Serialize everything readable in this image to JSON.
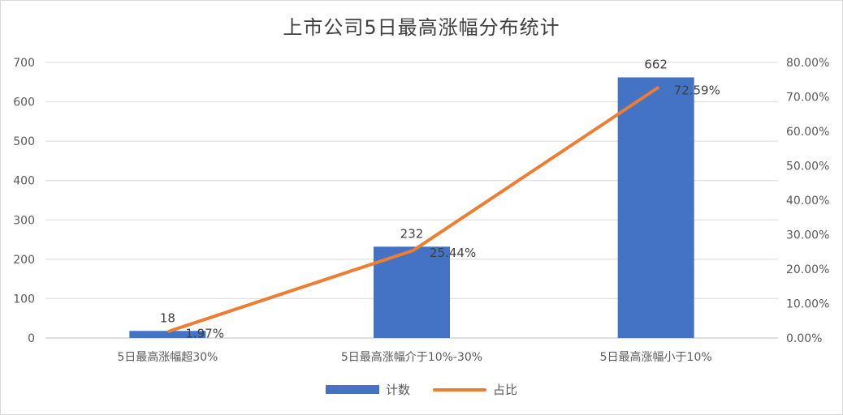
{
  "chart_data": {
    "type": "bar",
    "title": "上市公司5日最高涨幅分布统计",
    "categories": [
      "5日最高涨幅超30%",
      "5日最高涨幅介于10%-30%",
      "5日最高涨幅小于10%"
    ],
    "series": [
      {
        "name": "计数",
        "type": "bar",
        "axis": "left",
        "values": [
          18,
          232,
          662
        ],
        "labels": [
          "18",
          "232",
          "662"
        ],
        "color": "#4472c4"
      },
      {
        "name": "占比",
        "type": "line",
        "axis": "right",
        "values": [
          1.97,
          25.44,
          72.59
        ],
        "labels": [
          "1.97%",
          "25.44%",
          "72.59%"
        ],
        "color": "#ed7d31"
      }
    ],
    "y_left": {
      "min": 0,
      "max": 700,
      "step": 100,
      "ticks": [
        "0",
        "100",
        "200",
        "300",
        "400",
        "500",
        "600",
        "700"
      ]
    },
    "y_right": {
      "min": 0,
      "max": 80,
      "step": 10,
      "ticks": [
        "0.00%",
        "10.00%",
        "20.00%",
        "30.00%",
        "40.00%",
        "50.00%",
        "60.00%",
        "70.00%",
        "80.00%"
      ]
    },
    "grid": true,
    "legend_position": "bottom"
  }
}
